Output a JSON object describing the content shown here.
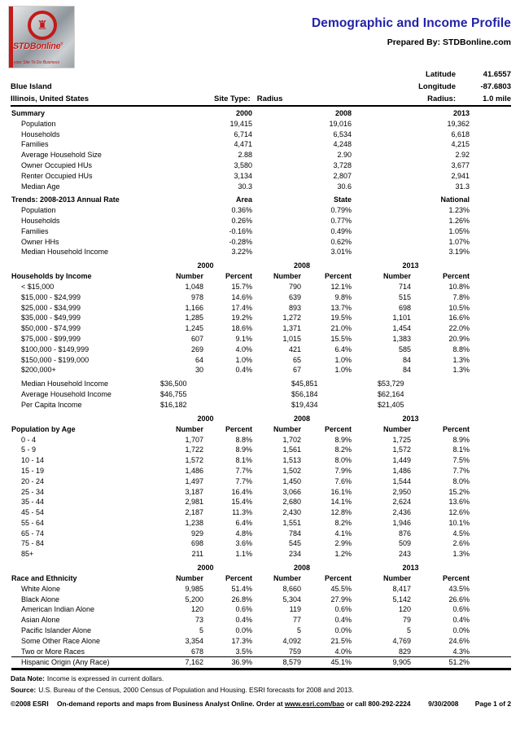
{
  "header": {
    "title": "Demographic and Income Profile",
    "title_color": "#2222aa",
    "prepared_by": "Prepared By: STDBonline.com",
    "logo": {
      "brand": "STDBonline",
      "reg_mark": "®",
      "tagline": "your Site To Do Business",
      "accent_red": "#c31a1a",
      "emblem": "♜"
    }
  },
  "location": {
    "name": "Blue Island",
    "region": "Illinois, United States",
    "site_type_label": "Site Type:",
    "site_type_value": "Radius",
    "latitude_label": "Latitude",
    "latitude_value": "41.6557",
    "longitude_label": "Longitude",
    "longitude_value": "-87.6803",
    "radius_label": "Radius:",
    "radius_value": "1.0 mile"
  },
  "summary": {
    "title": "Summary",
    "years": [
      "2000",
      "2008",
      "2013"
    ],
    "rows": [
      {
        "label": "Population",
        "values": [
          "19,415",
          "19,016",
          "19,362"
        ]
      },
      {
        "label": "Households",
        "values": [
          "6,714",
          "6,534",
          "6,618"
        ]
      },
      {
        "label": "Families",
        "values": [
          "4,471",
          "4,248",
          "4,215"
        ]
      },
      {
        "label": "Average Household Size",
        "values": [
          "2.88",
          "2.90",
          "2.92"
        ]
      },
      {
        "label": "Owner Occupied HUs",
        "values": [
          "3,580",
          "3,728",
          "3,677"
        ]
      },
      {
        "label": "Renter Occupied HUs",
        "values": [
          "3,134",
          "2,807",
          "2,941"
        ]
      },
      {
        "label": "Median Age",
        "values": [
          "30.3",
          "30.6",
          "31.3"
        ]
      }
    ]
  },
  "trends": {
    "title": "Trends: 2008-2013 Annual Rate",
    "columns": [
      "Area",
      "State",
      "National"
    ],
    "rows": [
      {
        "label": "Population",
        "values": [
          "0.36%",
          "0.79%",
          "1.23%"
        ]
      },
      {
        "label": "Households",
        "values": [
          "0.26%",
          "0.77%",
          "1.26%"
        ]
      },
      {
        "label": "Families",
        "values": [
          "-0.16%",
          "0.49%",
          "1.05%"
        ]
      },
      {
        "label": "Owner HHs",
        "values": [
          "-0.28%",
          "0.62%",
          "1.07%"
        ]
      },
      {
        "label": "Median Household Income",
        "values": [
          "3.22%",
          "3.01%",
          "3.19%"
        ]
      }
    ]
  },
  "income": {
    "title": "Households by Income",
    "years": [
      "2000",
      "2008",
      "2013"
    ],
    "col_headers": [
      "Number",
      "Percent"
    ],
    "rows": [
      {
        "label": "< $15,000",
        "v": [
          "1,048",
          "15.7%",
          "790",
          "12.1%",
          "714",
          "10.8%"
        ]
      },
      {
        "label": "$15,000 - $24,999",
        "v": [
          "978",
          "14.6%",
          "639",
          "9.8%",
          "515",
          "7.8%"
        ]
      },
      {
        "label": "$25,000 - $34,999",
        "v": [
          "1,166",
          "17.4%",
          "893",
          "13.7%",
          "698",
          "10.5%"
        ]
      },
      {
        "label": "$35,000 - $49,999",
        "v": [
          "1,285",
          "19.2%",
          "1,272",
          "19.5%",
          "1,101",
          "16.6%"
        ]
      },
      {
        "label": "$50,000 - $74,999",
        "v": [
          "1,245",
          "18.6%",
          "1,371",
          "21.0%",
          "1,454",
          "22.0%"
        ]
      },
      {
        "label": "$75,000 - $99,999",
        "v": [
          "607",
          "9.1%",
          "1,015",
          "15.5%",
          "1,383",
          "20.9%"
        ]
      },
      {
        "label": "$100,000 - $149,999",
        "v": [
          "269",
          "4.0%",
          "421",
          "6.4%",
          "585",
          "8.8%"
        ]
      },
      {
        "label": "$150,000 - $199,000",
        "v": [
          "64",
          "1.0%",
          "65",
          "1.0%",
          "84",
          "1.3%"
        ]
      },
      {
        "label": "$200,000+",
        "v": [
          "30",
          "0.4%",
          "67",
          "1.0%",
          "84",
          "1.3%"
        ]
      }
    ],
    "money_rows": [
      {
        "label": "Median Household Income",
        "values": [
          "$36,500",
          "$45,851",
          "$53,729"
        ]
      },
      {
        "label": "Average Household Income",
        "values": [
          "$46,755",
          "$56,184",
          "$62,164"
        ]
      },
      {
        "label": "Per Capita Income",
        "values": [
          "$16,182",
          "$19,434",
          "$21,405"
        ]
      }
    ]
  },
  "age": {
    "title": "Population by Age",
    "years": [
      "2000",
      "2008",
      "2013"
    ],
    "col_headers": [
      "Number",
      "Percent"
    ],
    "rows": [
      {
        "label": "0 - 4",
        "v": [
          "1,707",
          "8.8%",
          "1,702",
          "8.9%",
          "1,725",
          "8.9%"
        ]
      },
      {
        "label": "5 - 9",
        "v": [
          "1,722",
          "8.9%",
          "1,561",
          "8.2%",
          "1,572",
          "8.1%"
        ]
      },
      {
        "label": "10 - 14",
        "v": [
          "1,572",
          "8.1%",
          "1,513",
          "8.0%",
          "1,449",
          "7.5%"
        ]
      },
      {
        "label": "15 - 19",
        "v": [
          "1,486",
          "7.7%",
          "1,502",
          "7.9%",
          "1,486",
          "7.7%"
        ]
      },
      {
        "label": "20 - 24",
        "v": [
          "1,497",
          "7.7%",
          "1,450",
          "7.6%",
          "1,544",
          "8.0%"
        ]
      },
      {
        "label": "25 - 34",
        "v": [
          "3,187",
          "16.4%",
          "3,066",
          "16.1%",
          "2,950",
          "15.2%"
        ]
      },
      {
        "label": "35 - 44",
        "v": [
          "2,981",
          "15.4%",
          "2,680",
          "14.1%",
          "2,624",
          "13.6%"
        ]
      },
      {
        "label": "45 - 54",
        "v": [
          "2,187",
          "11.3%",
          "2,430",
          "12.8%",
          "2,436",
          "12.6%"
        ]
      },
      {
        "label": "55 - 64",
        "v": [
          "1,238",
          "6.4%",
          "1,551",
          "8.2%",
          "1,946",
          "10.1%"
        ]
      },
      {
        "label": "65 - 74",
        "v": [
          "929",
          "4.8%",
          "784",
          "4.1%",
          "876",
          "4.5%"
        ]
      },
      {
        "label": "75 - 84",
        "v": [
          "698",
          "3.6%",
          "545",
          "2.9%",
          "509",
          "2.6%"
        ]
      },
      {
        "label": "85+",
        "v": [
          "211",
          "1.1%",
          "234",
          "1.2%",
          "243",
          "1.3%"
        ]
      }
    ]
  },
  "race": {
    "title": "Race and Ethnicity",
    "years": [
      "2000",
      "2008",
      "2013"
    ],
    "col_headers": [
      "Number",
      "Percent"
    ],
    "rows": [
      {
        "label": "White Alone",
        "v": [
          "9,985",
          "51.4%",
          "8,660",
          "45.5%",
          "8,417",
          "43.5%"
        ]
      },
      {
        "label": "Black Alone",
        "v": [
          "5,200",
          "26.8%",
          "5,304",
          "27.9%",
          "5,142",
          "26.6%"
        ]
      },
      {
        "label": "American Indian Alone",
        "v": [
          "120",
          "0.6%",
          "119",
          "0.6%",
          "120",
          "0.6%"
        ]
      },
      {
        "label": "Asian Alone",
        "v": [
          "73",
          "0.4%",
          "77",
          "0.4%",
          "79",
          "0.4%"
        ]
      },
      {
        "label": "Pacific Islander Alone",
        "v": [
          "5",
          "0.0%",
          "5",
          "0.0%",
          "5",
          "0.0%"
        ]
      },
      {
        "label": "Some Other Race Alone",
        "v": [
          "3,354",
          "17.3%",
          "4,092",
          "21.5%",
          "4,769",
          "24.6%"
        ]
      },
      {
        "label": "Two or More Races",
        "v": [
          "678",
          "3.5%",
          "759",
          "4.0%",
          "829",
          "4.3%"
        ]
      },
      {
        "label": "Hispanic Origin (Any Race)",
        "v": [
          "7,162",
          "36.9%",
          "8,579",
          "45.1%",
          "9,905",
          "51.2%"
        ]
      }
    ]
  },
  "footnotes": {
    "data_note_label": "Data Note:",
    "data_note_text": "Income is expressed in current dollars.",
    "source_label": "Source:",
    "source_text": "U.S. Bureau of the Census, 2000 Census of Population and Housing. ESRI forecasts for 2008 and 2013."
  },
  "footer": {
    "copyright": "©2008 ESRI",
    "middle_pre": "On-demand reports and maps from Business Analyst Online. Order at ",
    "link_text": "www.esri.com/bao",
    "middle_post": " or call 800-292-2224",
    "date": "9/30/2008",
    "page": "Page 1 of 2"
  }
}
